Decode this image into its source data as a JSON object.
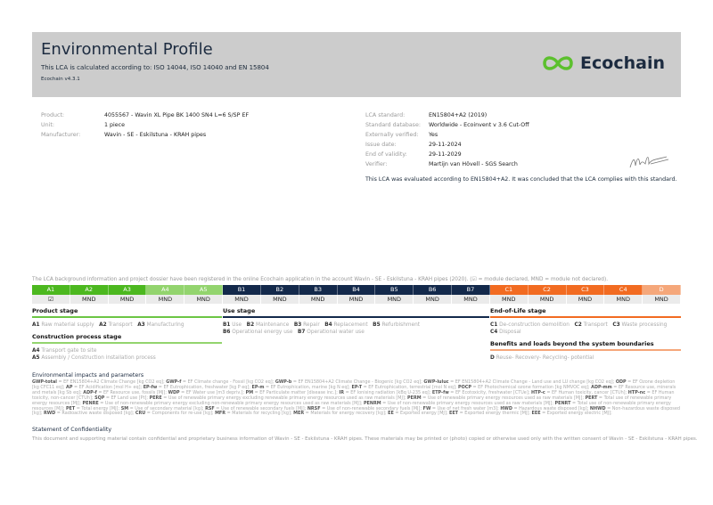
{
  "header": {
    "title": "Environmental Profile",
    "subtitle": "This LCA is calculated according to: ISO 14044, ISO 14040 and EN 15804",
    "version": "Ecochain v4.3.1",
    "logo_text": "Ecochain",
    "logo_color": "#5cc02e"
  },
  "product_info": [
    {
      "label": "Product:",
      "value": "4055567 - Wavin XL Pipe BK 1400 SN4 L=6 S/SP EF"
    },
    {
      "label": "Unit:",
      "value": "1 piece"
    },
    {
      "label": "Manufacturer:",
      "value": "Wavin - SE - Eskilstuna - KRAH pipes"
    }
  ],
  "lca_info": [
    {
      "label": "LCA standard:",
      "value": "EN15804+A2 (2019)"
    },
    {
      "label": "Standard database:",
      "value": "Worldwide - Ecoinvent v 3.6 Cut-Off"
    },
    {
      "label": "Externally verified:",
      "value": "Yes"
    },
    {
      "label": "Issue date:",
      "value": "29-11-2024"
    },
    {
      "label": "End of validity:",
      "value": "29-11-2029"
    },
    {
      "label": "Verifier:",
      "value": "Martijn van Hövell - SGS Search"
    }
  ],
  "compliance": "This LCA was evaluated according to EN15804+A2. It was concluded that the LCA complies with this standard.",
  "registration_note": "The LCA background information and project dossier have been registered in the online Ecochain application in the account Wavin - SE - Eskilstuna - KRAH pipes (2020). (☑ = module declared, MND = module not declared).",
  "modules": [
    {
      "code": "A1",
      "value": "☑",
      "color": "#4cb81f"
    },
    {
      "code": "A2",
      "value": "MND",
      "color": "#4cb81f"
    },
    {
      "code": "A3",
      "value": "MND",
      "color": "#4cb81f"
    },
    {
      "code": "A4",
      "value": "MND",
      "color": "#93d46e"
    },
    {
      "code": "A5",
      "value": "MND",
      "color": "#93d46e"
    },
    {
      "code": "B1",
      "value": "MND",
      "color": "#13294b"
    },
    {
      "code": "B2",
      "value": "MND",
      "color": "#13294b"
    },
    {
      "code": "B3",
      "value": "MND",
      "color": "#13294b"
    },
    {
      "code": "B4",
      "value": "MND",
      "color": "#13294b"
    },
    {
      "code": "B5",
      "value": "MND",
      "color": "#13294b"
    },
    {
      "code": "B6",
      "value": "MND",
      "color": "#13294b"
    },
    {
      "code": "B7",
      "value": "MND",
      "color": "#13294b"
    },
    {
      "code": "C1",
      "value": "MND",
      "color": "#f26b21"
    },
    {
      "code": "C2",
      "value": "MND",
      "color": "#f26b21"
    },
    {
      "code": "C3",
      "value": "MND",
      "color": "#f26b21"
    },
    {
      "code": "C4",
      "value": "MND",
      "color": "#f26b21"
    },
    {
      "code": "D",
      "value": "MND",
      "color": "#f5a77a"
    }
  ],
  "stages": {
    "product": {
      "title": "Product stage",
      "items": [
        {
          "code": "A1",
          "text": "Raw material supply"
        },
        {
          "code": "A2",
          "text": "Transport"
        },
        {
          "code": "A3",
          "text": "Manufacturing"
        }
      ]
    },
    "construction": {
      "title": "Construction process stage",
      "items": [
        {
          "code": "A4",
          "text": "Transport gate to site"
        },
        {
          "code": "A5",
          "text": "Assembly / Construction installation process"
        }
      ]
    },
    "use": {
      "title": "Use stage",
      "items": [
        {
          "code": "B1",
          "text": "Use"
        },
        {
          "code": "B2",
          "text": "Maintenance"
        },
        {
          "code": "B3",
          "text": "Repair"
        },
        {
          "code": "B4",
          "text": "Replacement"
        },
        {
          "code": "B5",
          "text": "Refurbishment"
        },
        {
          "code": "B6",
          "text": "Operational energy use"
        },
        {
          "code": "B7",
          "text": "Operational water use"
        }
      ]
    },
    "eol": {
      "title": "End-of-Life stage",
      "items": [
        {
          "code": "C1",
          "text": "De-construction demolition"
        },
        {
          "code": "C2",
          "text": "Transport"
        },
        {
          "code": "C3",
          "text": "Waste processing"
        },
        {
          "code": "C4",
          "text": "Disposal"
        }
      ]
    },
    "benefits": {
      "title": "Benefits and loads beyond the system boundaries",
      "items": [
        {
          "code": "D",
          "text": "Reuse- Recovery- Recycling- potential"
        }
      ]
    }
  },
  "impacts": {
    "title": "Environmental impacts and parameters",
    "glossary": [
      {
        "code": "GWP-total",
        "text": "EF EN15804+A2 Climate Change [kg CO2 eq]"
      },
      {
        "code": "GWP-f",
        "text": "EF Climate change - Fossil [kg CO2 eq]"
      },
      {
        "code": "GWP-b",
        "text": "EF EN15804+A2 Climate Change - Biogenic [kg CO2 eq]"
      },
      {
        "code": "GWP-luluc",
        "text": "EF EN15804+A2 Climate Change - Land use and LU change [kg CO2 eq]"
      },
      {
        "code": "ODP",
        "text": "EF Ozone depletion [kg CFC11 eq]"
      },
      {
        "code": "AP",
        "text": "EF Acidification [mol H+ eq]"
      },
      {
        "code": "EP-fw",
        "text": "EF Eutrophication, freshwater [kg P eq]"
      },
      {
        "code": "EP-m",
        "text": "EF Eutrophication, marine [kg N eq]"
      },
      {
        "code": "EP-T",
        "text": "EF Eutrophication, terrestrial [mol N eq]"
      },
      {
        "code": "POCP",
        "text": "EF Photochemical ozone formation [kg NMVOC eq]"
      },
      {
        "code": "ADP-mm",
        "text": "EF Resource use, minerals and metals [kg Sb eq]"
      },
      {
        "code": "ADP-f",
        "text": "EF Resource use, fossils [MJ]"
      },
      {
        "code": "WDP",
        "text": "EF Water use [m3 depriv.]"
      },
      {
        "code": "PM",
        "text": "EF Particulate matter [disease inc.]"
      },
      {
        "code": "IR",
        "text": "EF Ionising radiation [kBq U-235 eq]"
      },
      {
        "code": "ETP-fw",
        "text": "EF Ecotoxicity, freshwater [CTUe]"
      },
      {
        "code": "HTP-c",
        "text": "EF Human toxicity, cancer [CTUh]"
      },
      {
        "code": "HTP-nc",
        "text": "EF Human toxicity, non-cancer [CTUh]"
      },
      {
        "code": "SQP",
        "text": "EF Land use [Pt]"
      },
      {
        "code": "PERE",
        "text": "Use of renewable primary energy excluding renewable primary energy resources used as raw materials [MJ]"
      },
      {
        "code": "PERM",
        "text": "Use of renewable primary energy resources used as raw materials [MJ]"
      },
      {
        "code": "PERT",
        "text": "Total use of renewable primary energy resources [MJ]"
      },
      {
        "code": "PENRE",
        "text": "Use of non-renewable primary energy excluding non-renewable primary energy resources used as raw materials [MJ]"
      },
      {
        "code": "PENRM",
        "text": "Use of non-renewable primary energy resources used as raw materials [MJ]"
      },
      {
        "code": "PENRT",
        "text": "Total use of non-renewable primary energy resources [MJ]"
      },
      {
        "code": "PET",
        "text": "Total energy [MJ]"
      },
      {
        "code": "SM",
        "text": "Use of secondary material [kg]"
      },
      {
        "code": "RSF",
        "text": "Use of renewable secondary fuels [MJ]"
      },
      {
        "code": "NRSF",
        "text": "Use of non-renewable secondary fuels [MJ]"
      },
      {
        "code": "FW",
        "text": "Use of net fresh water [m3]"
      },
      {
        "code": "HWD",
        "text": "Hazardous waste disposed [kg]"
      },
      {
        "code": "NHWD",
        "text": "Non-hazardous waste disposed [kg]"
      },
      {
        "code": "RWD",
        "text": "Radioactive waste disposed [kg]"
      },
      {
        "code": "CRU",
        "text": "Components for re-use [kg]"
      },
      {
        "code": "MFR",
        "text": "Materials for recycling [kg]"
      },
      {
        "code": "MER",
        "text": "Materials for energy recovery [kg]"
      },
      {
        "code": "EE",
        "text": "Exported energy [MJ]"
      },
      {
        "code": "EET",
        "text": "Exported energy thermic [MJ]"
      },
      {
        "code": "EEE",
        "text": "Exported energy electric [MJ]"
      }
    ]
  },
  "confidentiality": {
    "title": "Statement of Confidentiality",
    "text": "This document and supporting material contain confidential and proprietary business information of Wavin - SE - Eskilstuna - KRAH pipes. These materials may be printed or (photo) copied or otherwise used only with the written consent of Wavin - SE - Eskilstuna - KRAH pipes."
  }
}
